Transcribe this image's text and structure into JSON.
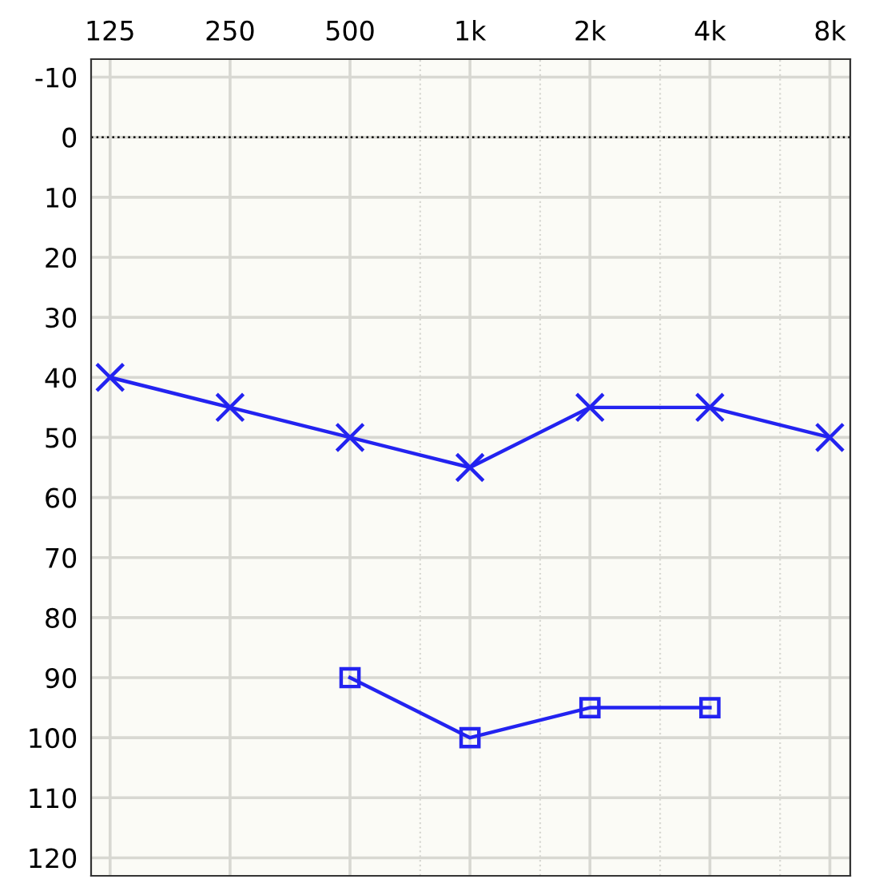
{
  "chart_data": {
    "type": "line",
    "x": [
      125,
      250,
      500,
      1000,
      2000,
      4000,
      8000
    ],
    "series": [
      {
        "color": "#2323f0",
        "marker": "cross",
        "values": [
          40,
          45,
          50,
          55,
          45,
          45,
          50
        ]
      },
      {
        "color": "#2323f0",
        "marker": "square",
        "x": [
          500,
          1000,
          2000,
          4000
        ],
        "values": [
          90,
          100,
          95,
          95
        ]
      }
    ],
    "log": "x",
    "xlim": [
      112,
      9000
    ],
    "xticks": [
      125,
      250,
      500,
      {
        "value": 750,
        "label": null
      },
      {
        "value": 1000,
        "label": "1k"
      },
      {
        "value": 1500,
        "label": null
      },
      {
        "value": 2000,
        "label": "2k"
      },
      {
        "value": 3000,
        "label": null
      },
      {
        "value": 4000,
        "label": "4k"
      },
      {
        "value": 6000,
        "label": null
      },
      {
        "value": 8000,
        "label": "8k"
      }
    ],
    "ylim": [
      123,
      -13
    ],
    "yticks": [
      -10,
      0,
      10,
      20,
      30,
      40,
      50,
      60,
      70,
      80,
      90,
      100,
      110,
      120
    ],
    "grid": true,
    "line_style": "solid",
    "ref_lines": [
      {
        "axis": "y",
        "value": 0,
        "color": "#000000",
        "line_style": "dotted"
      }
    ]
  }
}
